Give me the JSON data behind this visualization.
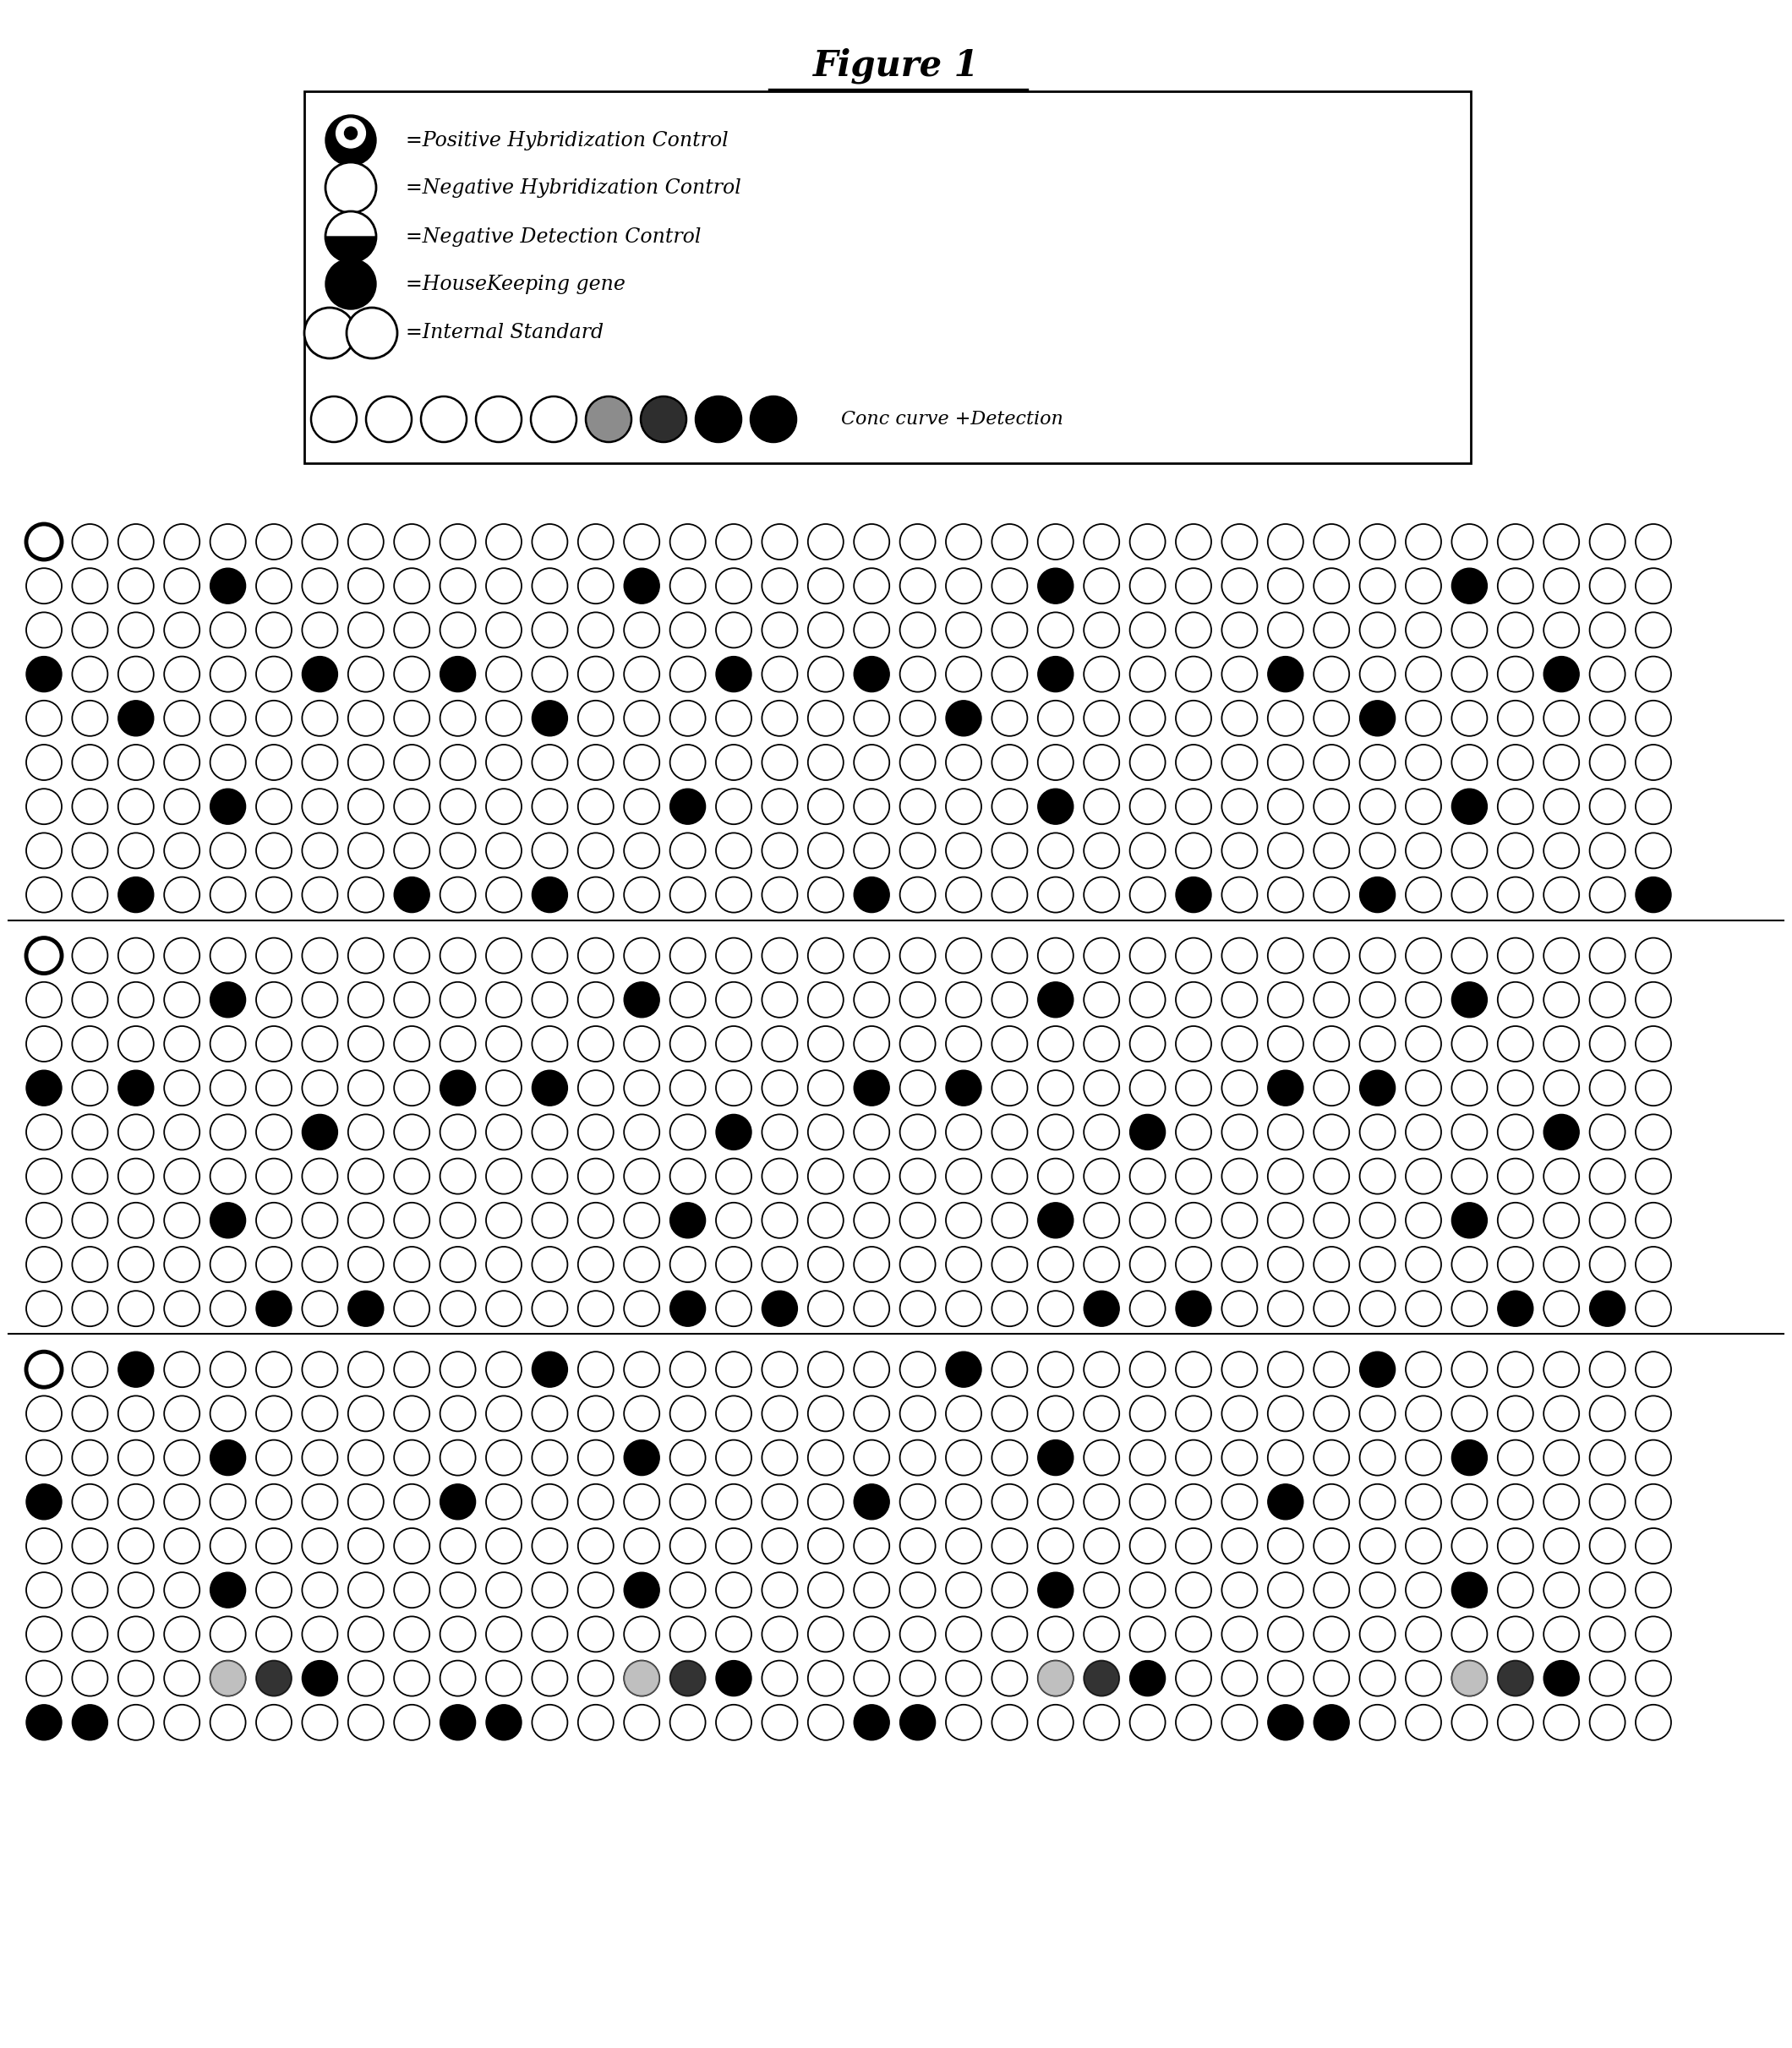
{
  "title": "Figure 1",
  "bg": "#ffffff",
  "legend_labels": [
    "=Positive Hybridization Control",
    "=Negative Hybridization Control",
    "=Negative Detection Control",
    "=HouseKeeping gene",
    "=Internal Standard"
  ],
  "conc_label": "Conc curve +Detection",
  "s1_rows": [
    [
      2,
      0,
      0,
      0,
      0,
      0,
      0,
      0,
      0,
      0,
      0,
      0,
      0,
      0,
      0,
      0,
      0,
      0,
      0,
      0,
      0,
      0,
      0,
      0,
      0,
      0,
      0,
      0,
      0,
      0,
      0,
      0,
      0,
      0,
      0,
      0
    ],
    [
      0,
      0,
      0,
      0,
      1,
      0,
      0,
      0,
      0,
      0,
      0,
      0,
      0,
      1,
      0,
      0,
      0,
      0,
      0,
      0,
      0,
      0,
      1,
      0,
      0,
      0,
      0,
      0,
      0,
      0,
      0,
      1,
      0,
      0,
      0,
      0
    ],
    [
      0,
      0,
      0,
      0,
      0,
      0,
      0,
      0,
      0,
      0,
      0,
      0,
      0,
      0,
      0,
      0,
      0,
      0,
      0,
      0,
      0,
      0,
      0,
      0,
      0,
      0,
      0,
      0,
      0,
      0,
      0,
      0,
      0,
      0,
      0,
      0
    ],
    [
      1,
      0,
      0,
      0,
      0,
      0,
      1,
      0,
      0,
      1,
      0,
      0,
      0,
      0,
      0,
      1,
      0,
      0,
      1,
      0,
      0,
      0,
      1,
      0,
      0,
      0,
      0,
      1,
      0,
      0,
      0,
      0,
      0,
      1,
      0,
      0
    ],
    [
      0,
      0,
      1,
      0,
      0,
      0,
      0,
      0,
      0,
      0,
      0,
      1,
      0,
      0,
      0,
      0,
      0,
      0,
      0,
      0,
      1,
      0,
      0,
      0,
      0,
      0,
      0,
      0,
      0,
      1,
      0,
      0,
      0,
      0,
      0,
      0
    ],
    [
      0,
      0,
      0,
      0,
      0,
      0,
      0,
      0,
      0,
      0,
      0,
      0,
      0,
      0,
      0,
      0,
      0,
      0,
      0,
      0,
      0,
      0,
      0,
      0,
      0,
      0,
      0,
      0,
      0,
      0,
      0,
      0,
      0,
      0,
      0,
      0
    ],
    [
      0,
      0,
      0,
      0,
      1,
      0,
      0,
      0,
      0,
      0,
      0,
      0,
      0,
      0,
      1,
      0,
      0,
      0,
      0,
      0,
      0,
      0,
      1,
      0,
      0,
      0,
      0,
      0,
      0,
      0,
      0,
      1,
      0,
      0,
      0,
      0
    ],
    [
      0,
      0,
      0,
      0,
      0,
      0,
      0,
      0,
      0,
      0,
      0,
      0,
      0,
      0,
      0,
      0,
      0,
      0,
      0,
      0,
      0,
      0,
      0,
      0,
      0,
      0,
      0,
      0,
      0,
      0,
      0,
      0,
      0,
      0,
      0,
      0
    ],
    [
      0,
      0,
      1,
      0,
      0,
      0,
      0,
      0,
      1,
      0,
      0,
      1,
      0,
      0,
      0,
      0,
      0,
      0,
      1,
      0,
      0,
      0,
      0,
      0,
      0,
      1,
      0,
      0,
      0,
      1,
      0,
      0,
      0,
      0,
      0,
      1
    ]
  ],
  "s2_rows": [
    [
      2,
      0,
      0,
      0,
      0,
      0,
      0,
      0,
      0,
      0,
      0,
      0,
      0,
      0,
      0,
      0,
      0,
      0,
      0,
      0,
      0,
      0,
      0,
      0,
      0,
      0,
      0,
      0,
      0,
      0,
      0,
      0,
      0,
      0,
      0,
      0
    ],
    [
      0,
      0,
      0,
      0,
      1,
      0,
      0,
      0,
      0,
      0,
      0,
      0,
      0,
      1,
      0,
      0,
      0,
      0,
      0,
      0,
      0,
      0,
      1,
      0,
      0,
      0,
      0,
      0,
      0,
      0,
      0,
      1,
      0,
      0,
      0,
      0
    ],
    [
      0,
      0,
      0,
      0,
      0,
      0,
      0,
      0,
      0,
      0,
      0,
      0,
      0,
      0,
      0,
      0,
      0,
      0,
      0,
      0,
      0,
      0,
      0,
      0,
      0,
      0,
      0,
      0,
      0,
      0,
      0,
      0,
      0,
      0,
      0,
      0
    ],
    [
      1,
      0,
      1,
      0,
      0,
      0,
      0,
      0,
      0,
      1,
      0,
      1,
      0,
      0,
      0,
      0,
      0,
      0,
      1,
      0,
      1,
      0,
      0,
      0,
      0,
      0,
      0,
      1,
      0,
      1,
      0,
      0,
      0,
      0,
      0,
      0
    ],
    [
      0,
      0,
      0,
      0,
      0,
      0,
      1,
      0,
      0,
      0,
      0,
      0,
      0,
      0,
      0,
      1,
      0,
      0,
      0,
      0,
      0,
      0,
      0,
      0,
      1,
      0,
      0,
      0,
      0,
      0,
      0,
      0,
      0,
      1,
      0,
      0
    ],
    [
      0,
      0,
      0,
      0,
      0,
      0,
      0,
      0,
      0,
      0,
      0,
      0,
      0,
      0,
      0,
      0,
      0,
      0,
      0,
      0,
      0,
      0,
      0,
      0,
      0,
      0,
      0,
      0,
      0,
      0,
      0,
      0,
      0,
      0,
      0,
      0
    ],
    [
      0,
      0,
      0,
      0,
      1,
      0,
      0,
      0,
      0,
      0,
      0,
      0,
      0,
      0,
      1,
      0,
      0,
      0,
      0,
      0,
      0,
      0,
      1,
      0,
      0,
      0,
      0,
      0,
      0,
      0,
      0,
      1,
      0,
      0,
      0,
      0
    ],
    [
      0,
      0,
      0,
      0,
      0,
      0,
      0,
      0,
      0,
      0,
      0,
      0,
      0,
      0,
      0,
      0,
      0,
      0,
      0,
      0,
      0,
      0,
      0,
      0,
      0,
      0,
      0,
      0,
      0,
      0,
      0,
      0,
      0,
      0,
      0,
      0
    ],
    [
      0,
      0,
      0,
      0,
      0,
      1,
      0,
      1,
      0,
      0,
      0,
      0,
      0,
      0,
      1,
      0,
      1,
      0,
      0,
      0,
      0,
      0,
      0,
      1,
      0,
      1,
      0,
      0,
      0,
      0,
      0,
      0,
      1,
      0,
      1,
      0
    ]
  ],
  "s3_rows": [
    [
      2,
      0,
      1,
      0,
      0,
      0,
      0,
      0,
      0,
      0,
      0,
      1,
      0,
      0,
      0,
      0,
      0,
      0,
      0,
      0,
      1,
      0,
      0,
      0,
      0,
      0,
      0,
      0,
      0,
      1,
      0,
      0,
      0,
      0,
      0,
      0
    ],
    [
      0,
      0,
      0,
      0,
      0,
      0,
      0,
      0,
      0,
      0,
      0,
      0,
      0,
      0,
      0,
      0,
      0,
      0,
      0,
      0,
      0,
      0,
      0,
      0,
      0,
      0,
      0,
      0,
      0,
      0,
      0,
      0,
      0,
      0,
      0,
      0
    ],
    [
      0,
      0,
      0,
      0,
      1,
      0,
      0,
      0,
      0,
      0,
      0,
      0,
      0,
      1,
      0,
      0,
      0,
      0,
      0,
      0,
      0,
      0,
      1,
      0,
      0,
      0,
      0,
      0,
      0,
      0,
      0,
      1,
      0,
      0,
      0,
      0
    ],
    [
      1,
      0,
      0,
      0,
      0,
      0,
      0,
      0,
      0,
      1,
      0,
      0,
      0,
      0,
      0,
      0,
      0,
      0,
      1,
      0,
      0,
      0,
      0,
      0,
      0,
      0,
      0,
      1,
      0,
      0,
      0,
      0,
      0,
      0,
      0,
      0
    ],
    [
      0,
      0,
      0,
      0,
      0,
      0,
      0,
      0,
      0,
      0,
      0,
      0,
      0,
      0,
      0,
      0,
      0,
      0,
      0,
      0,
      0,
      0,
      0,
      0,
      0,
      0,
      0,
      0,
      0,
      0,
      0,
      0,
      0,
      0,
      0,
      0
    ],
    [
      0,
      0,
      0,
      0,
      1,
      0,
      0,
      0,
      0,
      0,
      0,
      0,
      0,
      1,
      0,
      0,
      0,
      0,
      0,
      0,
      0,
      0,
      1,
      0,
      0,
      0,
      0,
      0,
      0,
      0,
      0,
      1,
      0,
      0,
      0,
      0
    ],
    [
      0,
      0,
      0,
      0,
      0,
      0,
      0,
      0,
      0,
      0,
      0,
      0,
      0,
      0,
      0,
      0,
      0,
      0,
      0,
      0,
      0,
      0,
      0,
      0,
      0,
      0,
      0,
      0,
      0,
      0,
      0,
      0,
      0,
      0,
      0,
      0
    ],
    [
      0,
      0,
      0,
      0,
      5,
      6,
      1,
      0,
      0,
      0,
      0,
      0,
      0,
      5,
      6,
      1,
      0,
      0,
      0,
      0,
      0,
      0,
      5,
      6,
      1,
      0,
      0,
      0,
      0,
      0,
      0,
      5,
      6,
      1,
      0,
      0
    ],
    [
      1,
      1,
      0,
      0,
      0,
      0,
      0,
      0,
      0,
      1,
      1,
      0,
      0,
      0,
      0,
      0,
      0,
      0,
      1,
      1,
      0,
      0,
      0,
      0,
      0,
      0,
      0,
      1,
      1,
      0,
      0,
      0,
      0,
      0,
      0,
      0
    ]
  ]
}
